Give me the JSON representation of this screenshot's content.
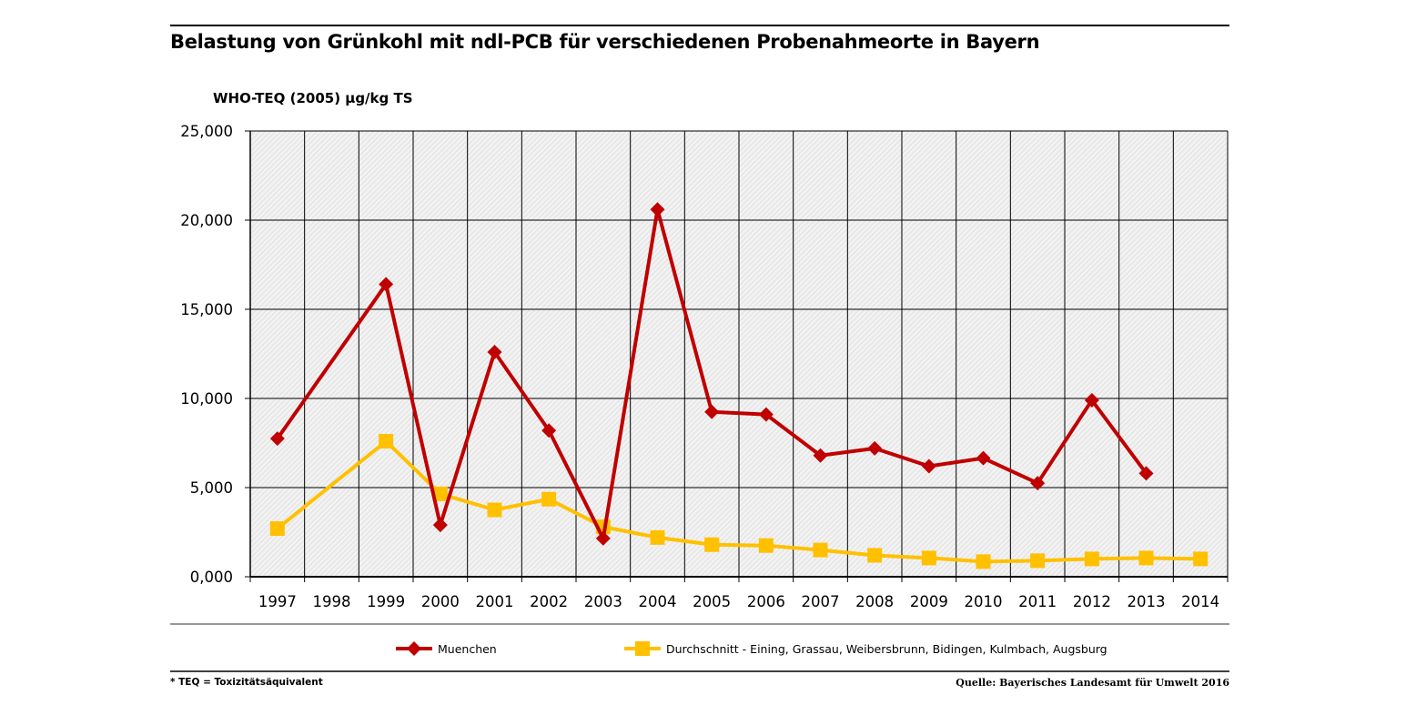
{
  "title": "Belastung von Grünkohl mit ndl-PCB für verschiedenen Probenahmeorte in Bayern",
  "footnote": "* TEQ = Toxizitätsäquivalent",
  "source": "Quelle: Bayerisches Landesamt für Umwelt 2016",
  "colors": {
    "series1": "#c00000",
    "series2": "#ffc000"
  },
  "chart_data": {
    "type": "line",
    "title": "Belastung von Grünkohl mit ndl-PCB für verschiedenen Probenahmeorte in Bayern",
    "ylabel": "WHO-TEQ (2005) µg/kg TS",
    "xlabel": "",
    "ylim": [
      0,
      25
    ],
    "yticks": [
      0,
      5,
      10,
      15,
      20,
      25
    ],
    "ytick_labels": [
      "0,000",
      "5,000",
      "10,000",
      "15,000",
      "20,000",
      "25,000"
    ],
    "categories": [
      "1997",
      "1998",
      "1999",
      "2000",
      "2001",
      "2002",
      "2003",
      "2004",
      "2005",
      "2006",
      "2007",
      "2008",
      "2009",
      "2010",
      "2011",
      "2012",
      "2013",
      "2014"
    ],
    "grid": true,
    "legend_position": "bottom",
    "series": [
      {
        "name": "Muenchen",
        "marker": "diamond",
        "values": [
          7.75,
          null,
          16.4,
          2.9,
          12.6,
          8.2,
          2.15,
          20.6,
          9.25,
          9.1,
          6.8,
          7.2,
          6.2,
          6.65,
          5.25,
          9.9,
          5.8,
          null
        ]
      },
      {
        "name": "Durchschnitt - Eining, Grassau, Weibersbrunn, Bidingen, Kulmbach, Augsburg",
        "marker": "square",
        "values": [
          2.7,
          null,
          7.6,
          4.65,
          3.75,
          4.35,
          2.8,
          2.2,
          1.8,
          1.75,
          1.5,
          1.2,
          1.05,
          0.85,
          0.9,
          1.0,
          1.05,
          1.0
        ]
      }
    ]
  }
}
